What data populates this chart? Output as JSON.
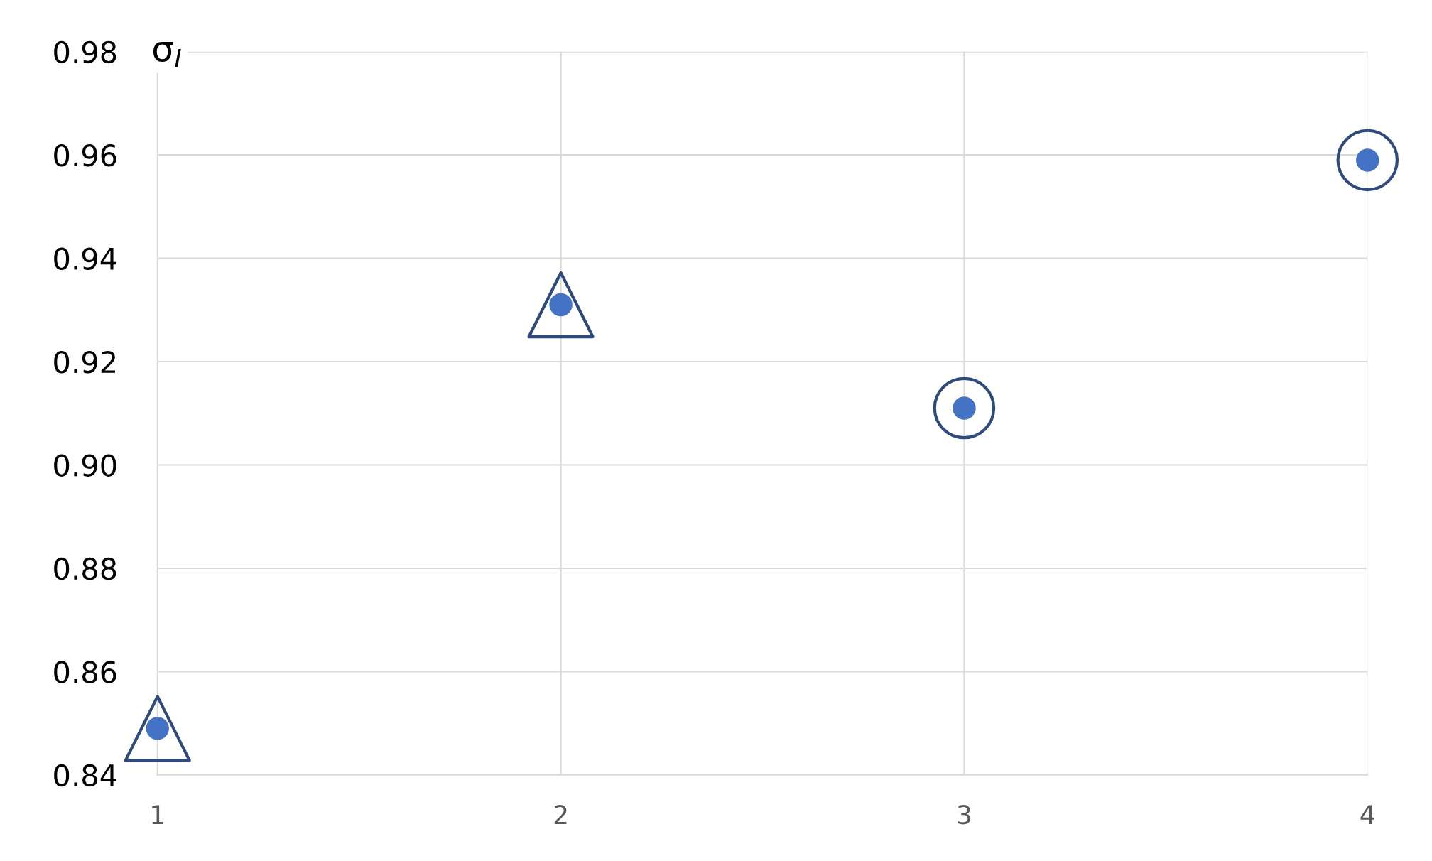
{
  "chart_data": {
    "type": "scatter",
    "ylabel": "σ$_{I}$",
    "xlim": [
      1,
      4
    ],
    "xticks": [
      1,
      2,
      3,
      4
    ],
    "ylim": [
      0.84,
      0.98
    ],
    "yticks": [
      {
        "value": 0.84,
        "label": "0.84"
      },
      {
        "value": 0.86,
        "label": "0.86"
      },
      {
        "value": 0.88,
        "label": "0.88"
      },
      {
        "value": 0.9,
        "label": "0.90"
      },
      {
        "value": 0.92,
        "label": "0.92"
      },
      {
        "value": 0.94,
        "label": "0.94"
      },
      {
        "value": 0.96,
        "label": "0.96"
      },
      {
        "value": 0.98,
        "label": "0.98"
      }
    ],
    "grid": true,
    "legend": false,
    "series": [
      {
        "color": "#2f4b7c",
        "marker": "triangle",
        "x": [
          1,
          2
        ],
        "values": [
          0.849,
          0.931
        ]
      },
      {
        "color": "#2f4b7c",
        "marker": "circle",
        "x": [
          3,
          4
        ],
        "values": [
          0.911,
          0.959
        ]
      },
      {
        "color": "#4472c4",
        "marker": "circle",
        "x": [
          1,
          2,
          3,
          4
        ],
        "values": [
          0.849,
          0.931,
          0.911,
          0.959
        ]
      }
    ]
  }
}
